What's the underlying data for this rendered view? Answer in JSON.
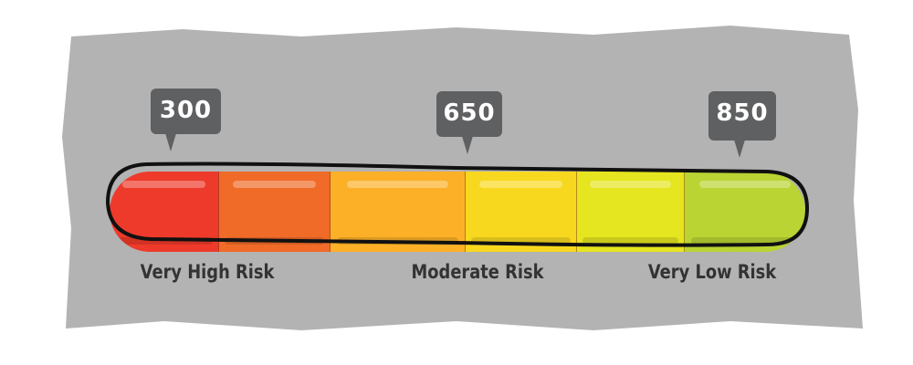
{
  "colors": {
    "background": "#b3b3b3",
    "bubble": "#5f6062",
    "segments": [
      "#ee3a2a",
      "#f06a28",
      "#fbb027",
      "#f8d81f",
      "#e5e520",
      "#b9d433"
    ]
  },
  "markers": [
    {
      "value": "300"
    },
    {
      "value": "650"
    },
    {
      "value": "850"
    }
  ],
  "labels": {
    "very_high": "Very High Risk",
    "moderate": "Moderate Risk",
    "very_low": "Very Low Risk"
  }
}
